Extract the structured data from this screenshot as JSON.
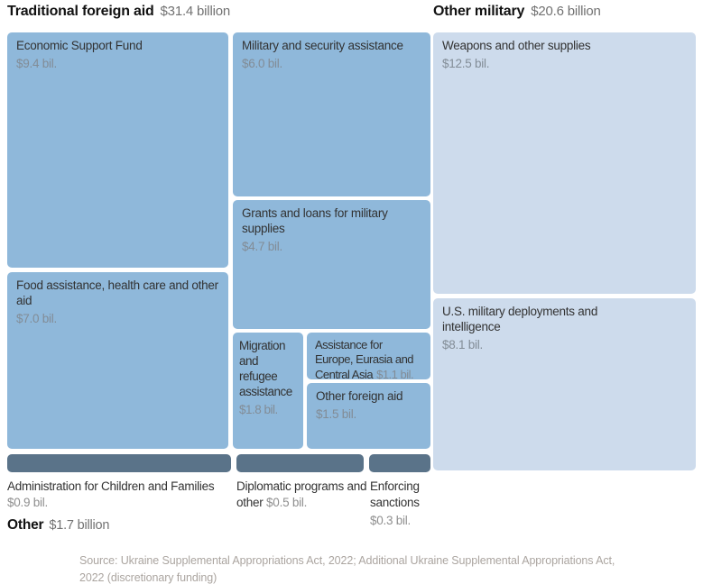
{
  "header_left": {
    "title": "Traditional foreign aid",
    "value": "$31.4 billion"
  },
  "header_right": {
    "title": "Other military",
    "value": "$20.6 billion"
  },
  "tiles": {
    "esf": {
      "label": "Economic Support Fund",
      "value": "$9.4 bil."
    },
    "food": {
      "label": "Food assistance, health care and other aid",
      "value": "$7.0 bil."
    },
    "msa": {
      "label": "Military and security assistance",
      "value": "$6.0 bil."
    },
    "grants": {
      "label": "Grants and loans for military supplies",
      "value": "$4.7 bil."
    },
    "migration": {
      "label": "Migration and refugee assistance",
      "value": "$1.8 bil."
    },
    "europe": {
      "label": "Assistance for Europe, Eurasia and Central Asia",
      "value": "$1.1 bil."
    },
    "otherforeign": {
      "label": "Other foreign aid",
      "value": "$1.5 bil."
    },
    "weapons": {
      "label": "Weapons and other supplies",
      "value": "$12.5 bil."
    },
    "usmil": {
      "label": "U.S. military deployments and intelligence",
      "value": "$8.1 bil."
    },
    "admin": {
      "label": "Administration for Children and Families",
      "value": "$0.9 bil."
    },
    "diplomatic": {
      "label": "Diplomatic programs and other",
      "value": "$0.5 bil."
    },
    "sanctions": {
      "label": "Enforcing sanctions",
      "value": "$0.3 bil."
    }
  },
  "footer": {
    "other_title": "Other",
    "other_value": "$1.7 billion",
    "source": "Source: Ukraine Supplemental Appropriations Act, 2022; Additional Ukraine Supplemental Appropriations Act, 2022 (discretionary funding)"
  },
  "colors": {
    "traditional_aid_fill": "#8fb8da",
    "other_military_fill": "#cddbec",
    "other_fill": "#5a7389",
    "tile_label": "#323232",
    "tile_value": "#828c96",
    "header_value": "#727272",
    "source_text": "#aba5a0"
  },
  "chart_data": {
    "type": "treemap",
    "title": "",
    "unit": "billion USD",
    "groups": [
      {
        "name": "Traditional foreign aid",
        "total": 31.4,
        "total_label": "$31.4 billion",
        "fill": "#8fb8da",
        "items": [
          {
            "label": "Economic Support Fund",
            "value": 9.4
          },
          {
            "label": "Food assistance, health care and other aid",
            "value": 7.0
          },
          {
            "label": "Military and security assistance",
            "value": 6.0
          },
          {
            "label": "Grants and loans for military supplies",
            "value": 4.7
          },
          {
            "label": "Migration and refugee assistance",
            "value": 1.8
          },
          {
            "label": "Other foreign aid",
            "value": 1.5
          },
          {
            "label": "Assistance for Europe, Eurasia and Central Asia",
            "value": 1.1
          }
        ]
      },
      {
        "name": "Other military",
        "total": 20.6,
        "total_label": "$20.6 billion",
        "fill": "#cddbec",
        "items": [
          {
            "label": "Weapons and other supplies",
            "value": 12.5
          },
          {
            "label": "U.S. military deployments and intelligence",
            "value": 8.1
          }
        ]
      },
      {
        "name": "Other",
        "total": 1.7,
        "total_label": "$1.7 billion",
        "fill": "#5a7389",
        "items": [
          {
            "label": "Administration for Children and Families",
            "value": 0.9
          },
          {
            "label": "Diplomatic programs and other",
            "value": 0.5
          },
          {
            "label": "Enforcing sanctions",
            "value": 0.3
          }
        ]
      }
    ],
    "source": "Source: Ukraine Supplemental Appropriations Act, 2022; Additional Ukraine Supplemental Appropriations Act, 2022 (discretionary funding)",
    "legend_position": "none",
    "grid": false
  }
}
